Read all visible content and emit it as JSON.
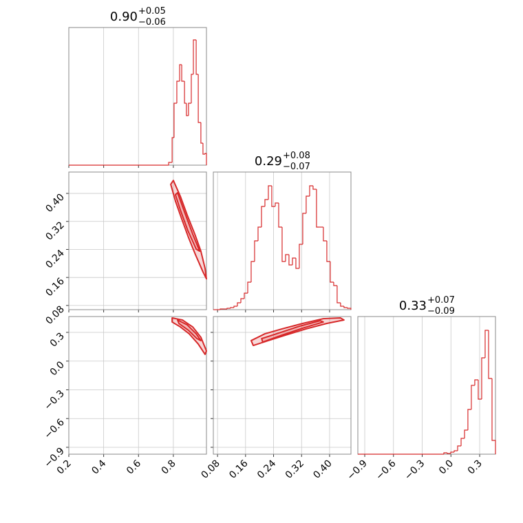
{
  "chart_data": {
    "type": "corner",
    "color": "#d62728",
    "grid": true,
    "hist_ylim": [
      0,
      200
    ],
    "parameters": [
      {
        "title": {
          "median": "0.90",
          "plus": "+0.05",
          "minus": "−0.06"
        },
        "lim": [
          0.2,
          0.99
        ],
        "ticks": [
          0.2,
          0.4,
          0.6,
          0.8
        ],
        "hist": {
          "bins": [
            0.2,
            0.773,
            0.793,
            0.804,
            0.82,
            0.836,
            0.848,
            0.864,
            0.875,
            0.887,
            0.903,
            0.915,
            0.931,
            0.943,
            0.958,
            0.97,
            0.982,
            0.99
          ],
          "counts": [
            0,
            4,
            40,
            90,
            122,
            146,
            122,
            90,
            72,
            90,
            132,
            182,
            132,
            62,
            32,
            16,
            17
          ]
        }
      },
      {
        "title": {
          "median": "0.29",
          "plus": "+0.08",
          "minus": "−0.07"
        },
        "lim": [
          0.068,
          0.461
        ],
        "ticks": [
          0.08,
          0.16,
          0.24,
          0.32,
          {
            "value": 0.4,
            "label": "0.40"
          }
        ],
        "hist": {
          "bins": [
            0.068,
            0.0778,
            0.0876,
            0.0975,
            0.1073,
            0.1171,
            0.1269,
            0.1367,
            0.1466,
            0.1564,
            0.1662,
            0.176,
            0.1858,
            0.1957,
            0.2055,
            0.2153,
            0.2251,
            0.2349,
            0.2448,
            0.2546,
            0.2644,
            0.2742,
            0.284,
            0.2939,
            0.3037,
            0.3135,
            0.3233,
            0.3331,
            0.343,
            0.3528,
            0.3626,
            0.3724,
            0.3822,
            0.3921,
            0.4019,
            0.4117,
            0.4215,
            0.4313,
            0.4412,
            0.451,
            0.4608
          ],
          "counts": [
            0,
            0,
            1,
            1,
            2,
            3,
            5,
            10,
            16,
            24,
            40,
            70,
            100,
            120,
            150,
            160,
            180,
            150,
            155,
            120,
            70,
            80,
            65,
            75,
            60,
            95,
            140,
            165,
            180,
            175,
            120,
            120,
            100,
            70,
            40,
            35,
            10,
            5,
            3,
            2
          ]
        }
      },
      {
        "title": {
          "median": "0.33",
          "plus": "+0.07",
          "minus": "−0.09"
        },
        "lim": [
          -0.972,
          0.465
        ],
        "ticks": [
          {
            "value": -0.9,
            "label": "−0.9"
          },
          {
            "value": -0.6,
            "label": "−0.6"
          },
          {
            "value": -0.3,
            "label": "−0.3"
          },
          {
            "value": 0,
            "label": "0.0"
          },
          0.3
        ],
        "hist": {
          "bins": [
            -0.972,
            -0.074,
            -0.038,
            -0.002,
            0.034,
            0.07,
            0.106,
            0.142,
            0.177,
            0.213,
            0.249,
            0.285,
            0.321,
            0.357,
            0.393,
            0.429,
            0.465
          ],
          "counts": [
            0,
            2,
            1,
            3,
            5,
            12,
            23,
            35,
            65,
            100,
            108,
            80,
            140,
            180,
            110,
            20
          ]
        }
      }
    ],
    "pairs": [
      {
        "contours": [
          {
            "x": [
              0.8,
              0.84,
              0.879,
              0.923,
              0.958,
              0.982,
              0.99,
              0.97,
              0.927,
              0.887,
              0.848,
              0.812,
              0.785
            ],
            "y": [
              0.437,
              0.392,
              0.339,
              0.284,
              0.235,
              0.186,
              0.156,
              0.176,
              0.225,
              0.274,
              0.327,
              0.378,
              0.426
            ]
          },
          {
            "x": [
              0.824,
              0.864,
              0.911,
              0.951,
              0.931,
              0.883,
              0.84,
              0.812
            ],
            "y": [
              0.402,
              0.347,
              0.284,
              0.235,
              0.241,
              0.294,
              0.353,
              0.396
            ]
          }
        ]
      },
      {
        "contours": [
          {
            "x": [
              0.793,
              0.852,
              0.911,
              0.958,
              0.99,
              0.982,
              0.943,
              0.891,
              0.84,
              0.793
            ],
            "y": [
              0.451,
              0.429,
              0.357,
              0.249,
              0.106,
              0.07,
              0.178,
              0.285,
              0.357,
              0.408
            ]
          },
          {
            "x": [
              0.824,
              0.879,
              0.931,
              0.958,
              0.935,
              0.887,
              0.832
            ],
            "y": [
              0.429,
              0.379,
              0.285,
              0.214,
              0.235,
              0.321,
              0.393
            ]
          }
        ]
      },
      {
        "contours": [
          {
            "x": [
              0.176,
              0.215,
              0.264,
              0.323,
              0.382,
              0.431,
              0.441,
              0.392,
              0.333,
              0.274,
              0.225,
              0.182
            ],
            "y": [
              0.214,
              0.285,
              0.336,
              0.393,
              0.443,
              0.451,
              0.429,
              0.393,
              0.336,
              0.271,
              0.214,
              0.163
            ]
          },
          {
            "x": [
              0.206,
              0.255,
              0.314,
              0.373,
              0.382,
              0.323,
              0.264,
              0.209
            ],
            "y": [
              0.235,
              0.293,
              0.364,
              0.422,
              0.408,
              0.343,
              0.271,
              0.199
            ]
          }
        ]
      }
    ]
  }
}
